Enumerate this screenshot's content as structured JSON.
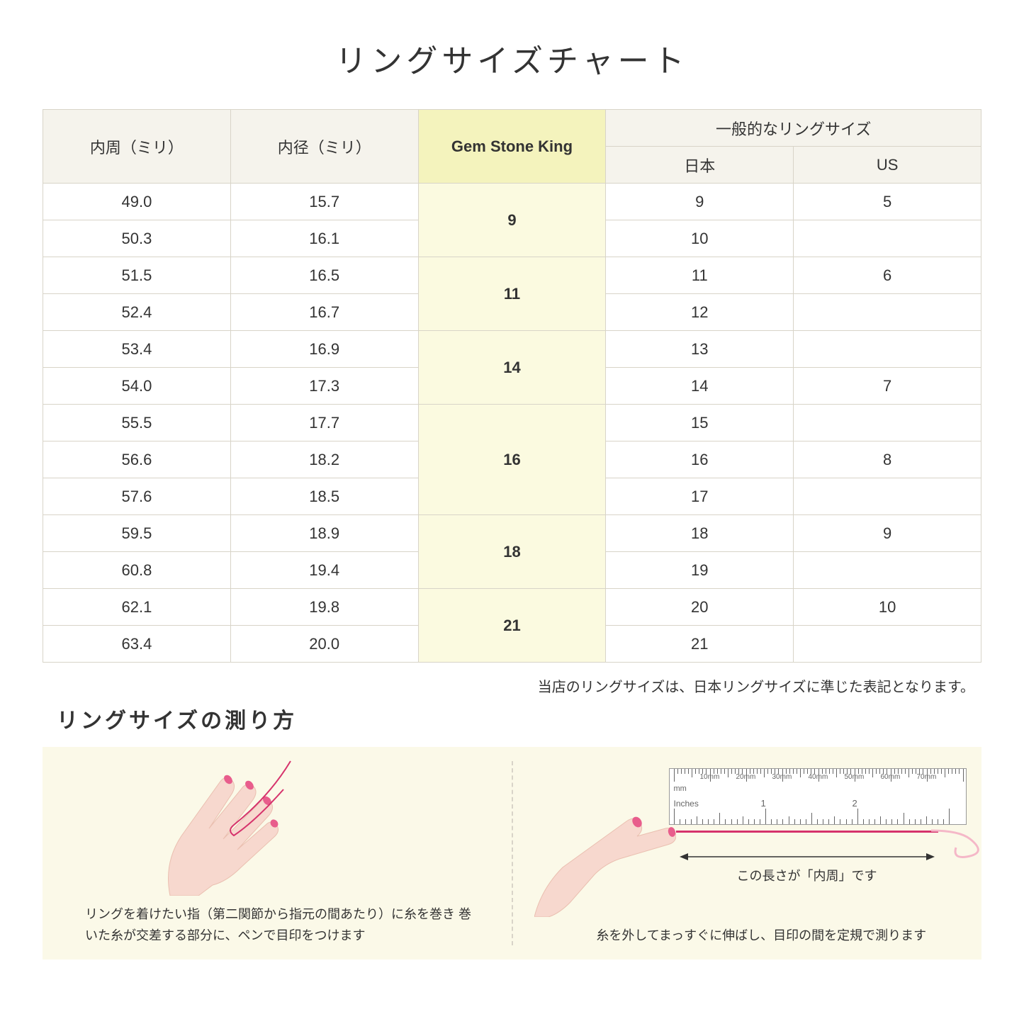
{
  "title": "リングサイズチャート",
  "headers": {
    "col1": "内周（ミリ）",
    "col2": "内径（ミリ）",
    "col3": "Gem Stone King",
    "col4_group": "一般的なリングサイズ",
    "col4a": "日本",
    "col4b": "US"
  },
  "groups": [
    {
      "gsk": "9",
      "rows": [
        {
          "c": "49.0",
          "d": "15.7",
          "jp": "9",
          "us": "5"
        },
        {
          "c": "50.3",
          "d": "16.1",
          "jp": "10",
          "us": ""
        }
      ]
    },
    {
      "gsk": "11",
      "rows": [
        {
          "c": "51.5",
          "d": "16.5",
          "jp": "11",
          "us": "6"
        },
        {
          "c": "52.4",
          "d": "16.7",
          "jp": "12",
          "us": ""
        }
      ]
    },
    {
      "gsk": "14",
      "rows": [
        {
          "c": "53.4",
          "d": "16.9",
          "jp": "13",
          "us": ""
        },
        {
          "c": "54.0",
          "d": "17.3",
          "jp": "14",
          "us": "7"
        }
      ]
    },
    {
      "gsk": "16",
      "rows": [
        {
          "c": "55.5",
          "d": "17.7",
          "jp": "15",
          "us": ""
        },
        {
          "c": "56.6",
          "d": "18.2",
          "jp": "16",
          "us": "8"
        },
        {
          "c": "57.6",
          "d": "18.5",
          "jp": "17",
          "us": ""
        }
      ]
    },
    {
      "gsk": "18",
      "rows": [
        {
          "c": "59.5",
          "d": "18.9",
          "jp": "18",
          "us": "9"
        },
        {
          "c": "60.8",
          "d": "19.4",
          "jp": "19",
          "us": ""
        }
      ]
    },
    {
      "gsk": "21",
      "rows": [
        {
          "c": "62.1",
          "d": "19.8",
          "jp": "20",
          "us": "10"
        },
        {
          "c": "63.4",
          "d": "20.0",
          "jp": "21",
          "us": ""
        }
      ]
    }
  ],
  "note": "当店のリングサイズは、日本リングサイズに準じた表記となります。",
  "subtitle": "リングサイズの測り方",
  "guide": {
    "left_caption": "リングを着けたい指（第二関節から指元の間あたり）に糸を巻き\n巻いた糸が交差する部分に、ペンで目印をつけます",
    "right_caption": "糸を外してまっすぐに伸ばし、目印の間を定規で測ります",
    "arrow_label": "この長さが「内周」です",
    "ruler_mm": "mm",
    "ruler_in": "Inches",
    "ruler_mm_labels": [
      "10mm",
      "20mm",
      "30mm",
      "40mm",
      "50mm",
      "60mm",
      "70mm"
    ],
    "ruler_in_labels": [
      "1",
      "2"
    ]
  },
  "colors": {
    "border": "#d8d4c8",
    "header_bg": "#f5f3ec",
    "gsk_header_bg": "#f4f3bd",
    "gsk_cell_bg": "#fbfae0",
    "guide_bg": "#fbf9e8",
    "skin": "#f7d8ce",
    "skin_dark": "#eabfb0",
    "nail": "#e85d8c",
    "thread": "#d6336c"
  }
}
